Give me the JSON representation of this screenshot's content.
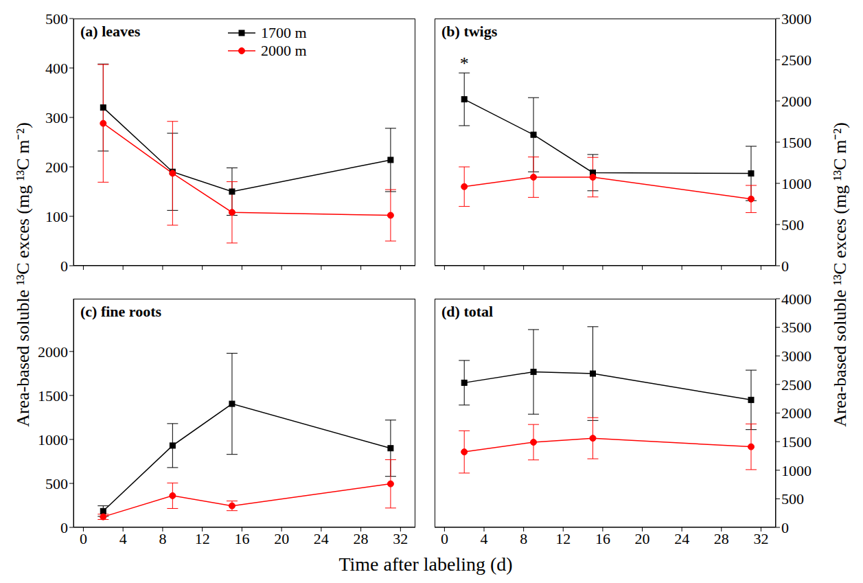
{
  "x_label": "Time after labeling (d)",
  "y_label": "Area-based soluble ¹³C exces (mg ¹³C m⁻²)",
  "chart_data": [
    {
      "type": "line",
      "title": "(a) leaves",
      "x": [
        2,
        9,
        15,
        31
      ],
      "xlim": [
        -1,
        33.5
      ],
      "xticks": [
        0,
        4,
        8,
        12,
        16,
        20,
        24,
        28,
        32
      ],
      "ylim": [
        0,
        500
      ],
      "yticks": [
        0,
        100,
        200,
        300,
        400,
        500
      ],
      "tick_labels": "y",
      "legend": "upper right",
      "series": [
        {
          "name": "1700 m",
          "color": "#000000",
          "marker": "square",
          "values": [
            320,
            190,
            150,
            214
          ],
          "errors": [
            88,
            78,
            48,
            64
          ]
        },
        {
          "name": "2000 m",
          "color": "#ff0000",
          "marker": "circle",
          "values": [
            288,
            187,
            108,
            102
          ],
          "errors": [
            119,
            105,
            62,
            52
          ]
        }
      ]
    },
    {
      "type": "line",
      "title": "(b) twigs",
      "x": [
        2,
        9,
        15,
        31
      ],
      "xlim": [
        -1,
        33.5
      ],
      "xticks": [
        0,
        4,
        8,
        12,
        16,
        20,
        24,
        28,
        32
      ],
      "ylim": [
        0,
        3000
      ],
      "yticks": [
        0,
        500,
        1000,
        1500,
        2000,
        2500,
        3000
      ],
      "tick_labels": "y",
      "annotations": [
        {
          "text": "*",
          "x": 2,
          "series": "1700 m"
        }
      ],
      "series": [
        {
          "name": "1700 m",
          "color": "#000000",
          "marker": "square",
          "values": [
            2020,
            1590,
            1130,
            1120
          ],
          "errors": [
            320,
            450,
            220,
            330
          ]
        },
        {
          "name": "2000 m",
          "color": "#ff0000",
          "marker": "circle",
          "values": [
            960,
            1075,
            1075,
            810
          ],
          "errors": [
            240,
            245,
            240,
            165
          ]
        }
      ]
    },
    {
      "type": "line",
      "title": "(c) fine roots",
      "x": [
        2,
        9,
        15,
        31
      ],
      "xlim": [
        -1,
        33.5
      ],
      "xticks": [
        0,
        4,
        8,
        12,
        16,
        20,
        24,
        28,
        32
      ],
      "ylim": [
        0,
        2600
      ],
      "yticks": [
        0,
        500,
        1000,
        1500,
        2000
      ],
      "series": [
        {
          "name": "1700 m",
          "color": "#000000",
          "marker": "square",
          "values": [
            185,
            930,
            1405,
            900
          ],
          "errors": [
            60,
            250,
            575,
            320
          ]
        },
        {
          "name": "2000 m",
          "color": "#ff0000",
          "marker": "circle",
          "values": [
            120,
            360,
            245,
            495
          ],
          "errors": [
            30,
            145,
            55,
            275
          ]
        }
      ]
    },
    {
      "type": "line",
      "title": "(d) total",
      "x": [
        2,
        9,
        15,
        31
      ],
      "xlim": [
        -1,
        33.5
      ],
      "xticks": [
        0,
        4,
        8,
        12,
        16,
        20,
        24,
        28,
        32
      ],
      "ylim": [
        0,
        4000
      ],
      "yticks": [
        0,
        500,
        1000,
        1500,
        2000,
        2500,
        3000,
        3500,
        4000
      ],
      "series": [
        {
          "name": "1700 m",
          "color": "#000000",
          "marker": "square",
          "values": [
            2530,
            2720,
            2690,
            2230
          ],
          "errors": [
            390,
            740,
            820,
            520
          ]
        },
        {
          "name": "2000 m",
          "color": "#ff0000",
          "marker": "circle",
          "values": [
            1320,
            1490,
            1560,
            1410
          ],
          "errors": [
            370,
            310,
            360,
            400
          ]
        }
      ]
    }
  ]
}
